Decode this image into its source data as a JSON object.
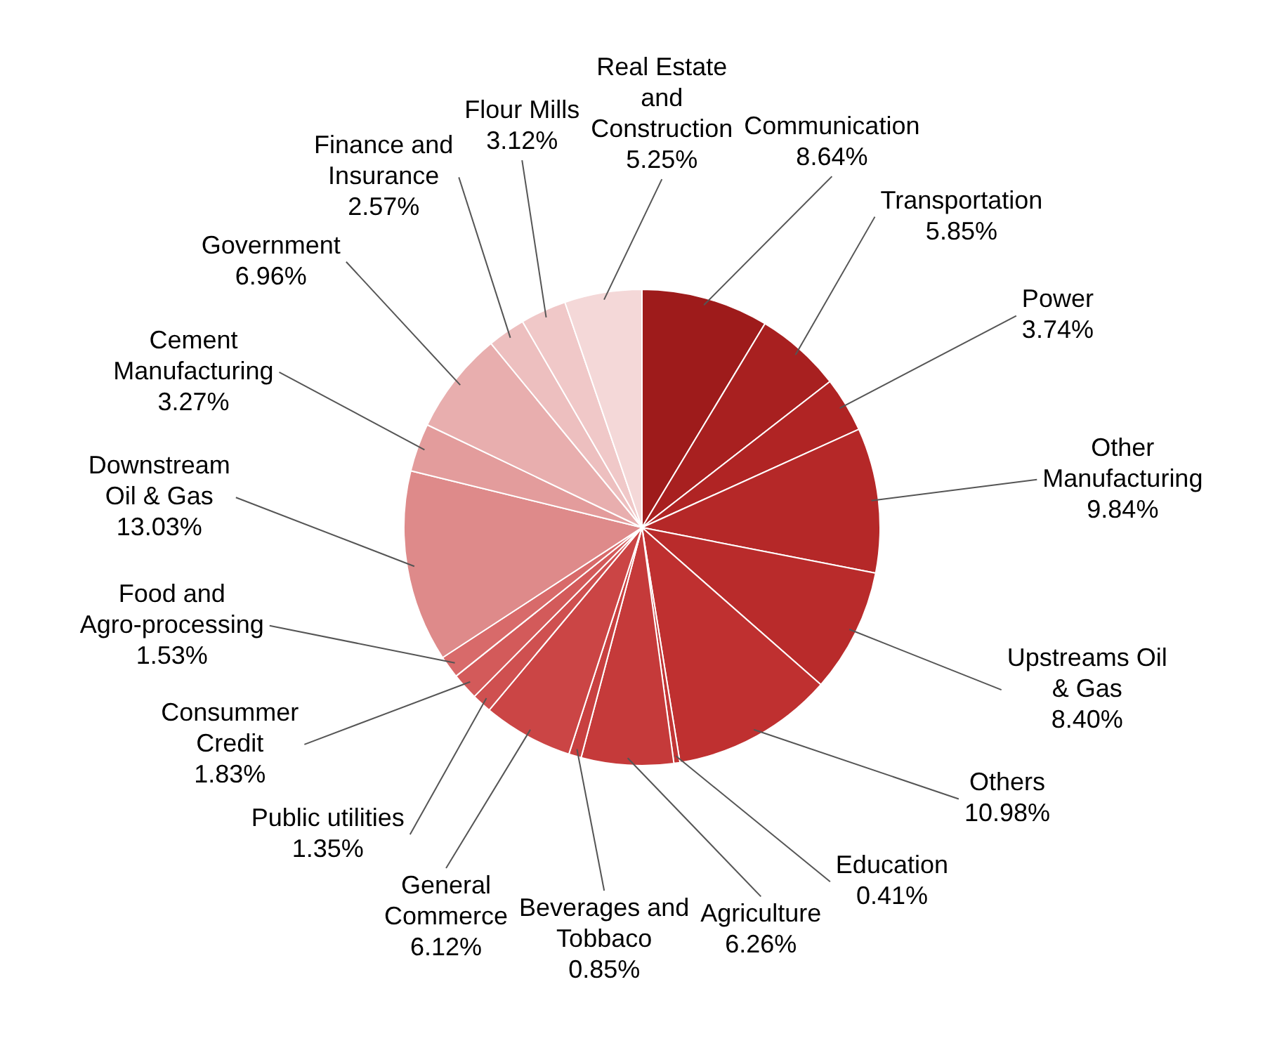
{
  "chart_data": {
    "type": "pie",
    "categories": [
      "Communication",
      "Transportation",
      "Power",
      "Other Manufacturing",
      "Upstreams Oil & Gas",
      "Others",
      "Education",
      "Agriculture",
      "Beverages and Tobbaco",
      "General Commerce",
      "Public utilities",
      "Consummer Credit",
      "Food and Agro-processing",
      "Downstream Oil & Gas",
      "Cement Manufacturing",
      "Government",
      "Finance and Insurance",
      "Flour Mills",
      "Real Estate and Construction"
    ],
    "values": [
      8.64,
      5.85,
      3.74,
      9.84,
      8.4,
      10.98,
      0.41,
      6.26,
      0.85,
      6.12,
      1.35,
      1.83,
      1.53,
      13.03,
      3.27,
      6.96,
      2.57,
      3.12,
      5.25
    ],
    "value_labels": [
      "8.64%",
      "5.85%",
      "3.74%",
      "9.84%",
      "8.40%",
      "10.98%",
      "0.41%",
      "6.26%",
      "0.85%",
      "6.12%",
      "1.35%",
      "1.83%",
      "1.53%",
      "13.03%",
      "3.27%",
      "6.96%",
      "2.57%",
      "3.12%",
      "5.25%"
    ],
    "colors": [
      "#9e1b1b",
      "#a82020",
      "#b02424",
      "#b52828",
      "#b92b2b",
      "#bf3030",
      "#c23535",
      "#c53a3a",
      "#c84040",
      "#cb4545",
      "#cf5050",
      "#d35a5a",
      "#d86a6a",
      "#de8a8a",
      "#e39c9c",
      "#e8aeae",
      "#edbfbf",
      "#f0c8c8",
      "#f4d8d8"
    ],
    "legend": false
  }
}
